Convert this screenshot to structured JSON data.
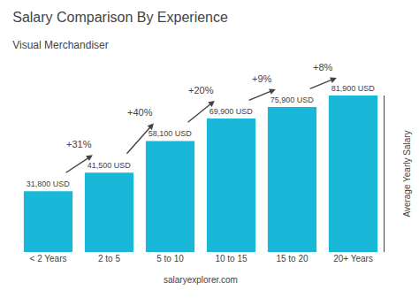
{
  "chart_data": {
    "type": "bar",
    "title": "Salary Comparison By Experience",
    "subtitle": "Visual Merchandiser",
    "categories": [
      "< 2 Years",
      "2 to 5",
      "5 to 10",
      "10 to 15",
      "15 to 20",
      "20+ Years"
    ],
    "values": [
      31800,
      41500,
      58100,
      69900,
      75900,
      81900
    ],
    "value_labels": [
      "31,800 USD",
      "41,500 USD",
      "58,100 USD",
      "69,900 USD",
      "75,900 USD",
      "81,900 USD"
    ],
    "data_labels": true,
    "color": "#1ab8d8",
    "annotations": [
      "+31%",
      "+40%",
      "+20%",
      "+9%",
      "+8%"
    ],
    "ylabel": "Average Yearly Salary",
    "footer": "salaryexplorer.com",
    "ylim": [
      0,
      81900
    ],
    "tick_labels": "x",
    "grid": false
  }
}
